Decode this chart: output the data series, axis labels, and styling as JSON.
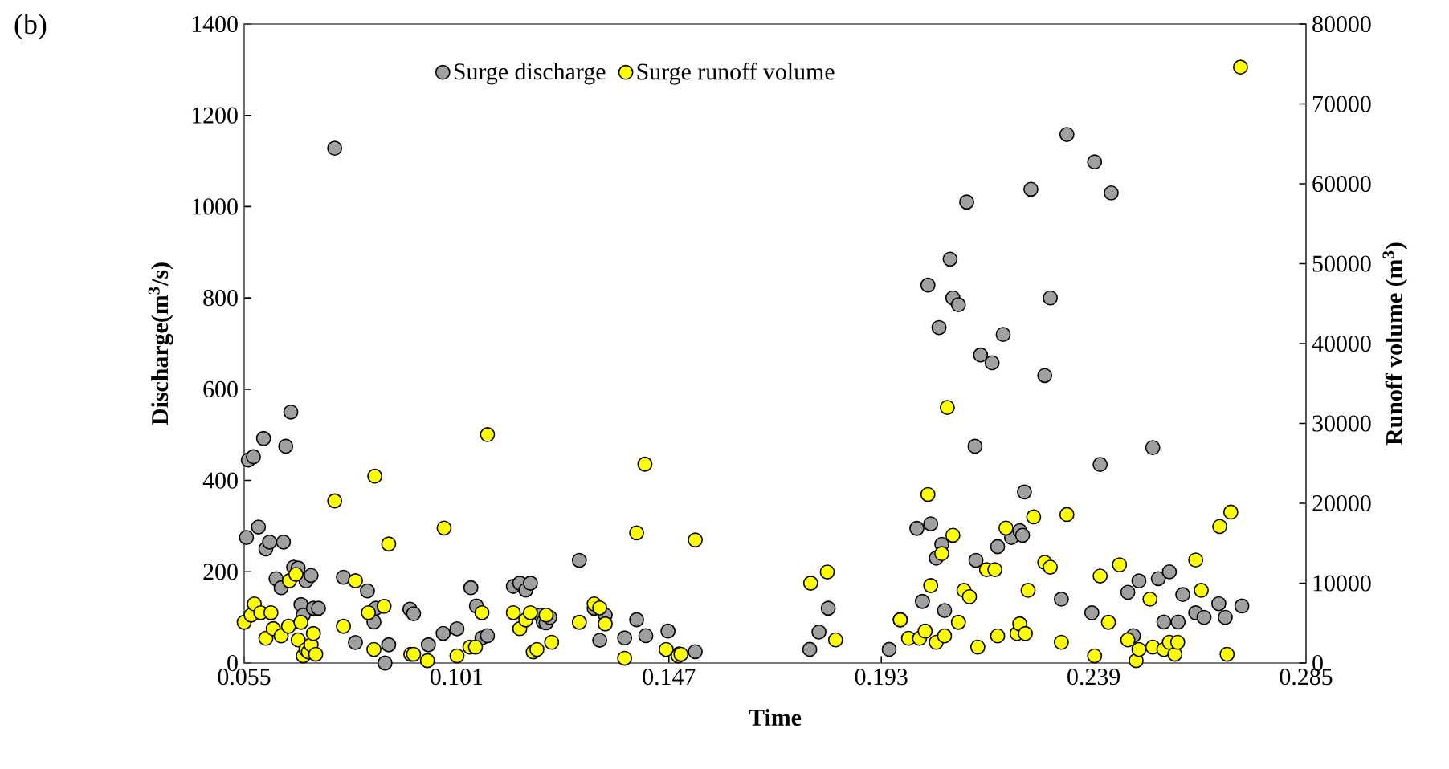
{
  "chart_data": {
    "type": "scatter",
    "xlabel": "Time",
    "ylabel": "Discharge(m$^{3}$/s)",
    "y2label": "Runoff volume (m$^{3}$)",
    "annotations": [
      "(b)"
    ],
    "xlim": [
      0.055,
      0.285
    ],
    "xticks": [
      0.055,
      0.101,
      0.147,
      0.193,
      0.239,
      0.285
    ],
    "ylim": [
      0,
      1400
    ],
    "yticks": [
      0,
      200,
      400,
      600,
      800,
      1000,
      1200,
      1400
    ],
    "y2lim": [
      0,
      80000
    ],
    "y2ticks": [
      0,
      10000,
      20000,
      30000,
      40000,
      50000,
      60000,
      70000,
      80000
    ],
    "marker": "circle",
    "legend": "top",
    "series": [
      {
        "name": "Surge discharge",
        "color": "#a0a0a0",
        "x": [
          0.0555,
          0.0559,
          0.057,
          0.0581,
          0.0592,
          0.0597,
          0.0605,
          0.0619,
          0.063,
          0.0635,
          0.064,
          0.0651,
          0.0657,
          0.0667,
          0.0673,
          0.0678,
          0.0684,
          0.0695,
          0.07,
          0.0711,
          0.0746,
          0.0765,
          0.0791,
          0.0817,
          0.0831,
          0.0835,
          0.0855,
          0.0863,
          0.0909,
          0.0917,
          0.0949,
          0.0981,
          0.1011,
          0.1041,
          0.1053,
          0.1065,
          0.1077,
          0.1133,
          0.1147,
          0.116,
          0.117,
          0.1192,
          0.1198,
          0.1204,
          0.1212,
          0.1276,
          0.1308,
          0.132,
          0.1332,
          0.1374,
          0.14,
          0.142,
          0.1468,
          0.1492,
          0.1527,
          0.1775,
          0.1795,
          0.1815,
          0.1947,
          0.1971,
          0.2007,
          0.2019,
          0.2031,
          0.2037,
          0.2049,
          0.2055,
          0.2061,
          0.2067,
          0.2079,
          0.2085,
          0.2097,
          0.2115,
          0.2133,
          0.2135,
          0.2145,
          0.217,
          0.2182,
          0.2194,
          0.2212,
          0.223,
          0.2236,
          0.224,
          0.2254,
          0.2284,
          0.2296,
          0.232,
          0.2332,
          0.2386,
          0.2392,
          0.2404,
          0.2428,
          0.2464,
          0.2476,
          0.2488,
          0.2518,
          0.253,
          0.2542,
          0.2554,
          0.2573,
          0.2583,
          0.2611,
          0.2629,
          0.2661,
          0.2675,
          0.2711
        ],
        "values": [
          275,
          445,
          452,
          298,
          492,
          250,
          265,
          185,
          165,
          265,
          475,
          550,
          210,
          208,
          128,
          105,
          180,
          192,
          120,
          120,
          1128,
          188,
          45,
          158,
          90,
          120,
          0,
          40,
          118,
          108,
          40,
          65,
          75,
          165,
          125,
          55,
          60,
          168,
          175,
          160,
          175,
          105,
          90,
          88,
          100,
          225,
          120,
          50,
          105,
          55,
          95,
          60,
          70,
          20,
          25,
          30,
          68,
          120,
          30,
          95,
          295,
          135,
          828,
          305,
          230,
          735,
          260,
          115,
          885,
          800,
          785,
          1010,
          475,
          225,
          675,
          658,
          255,
          720,
          275,
          290,
          280,
          375,
          1038,
          630,
          800,
          140,
          1158,
          110,
          1098,
          435,
          1030,
          155,
          60,
          180,
          472,
          185,
          90,
          200,
          90,
          150,
          110,
          100,
          130,
          100,
          125
        ]
      },
      {
        "name": "Surge runoff volume",
        "color": "#ffff00",
        "axis": "y2",
        "x": [
          0.055,
          0.0565,
          0.0572,
          0.0586,
          0.0597,
          0.0608,
          0.0613,
          0.063,
          0.0646,
          0.0648,
          0.0662,
          0.0667,
          0.0673,
          0.0678,
          0.0684,
          0.0689,
          0.0695,
          0.07,
          0.0705,
          0.0746,
          0.0765,
          0.0791,
          0.0819,
          0.0831,
          0.0833,
          0.0853,
          0.0863,
          0.0911,
          0.0917,
          0.0947,
          0.0983,
          0.1011,
          0.1039,
          0.1051,
          0.1065,
          0.1077,
          0.1133,
          0.1147,
          0.116,
          0.117,
          0.1176,
          0.1184,
          0.1204,
          0.1216,
          0.1276,
          0.1308,
          0.132,
          0.1332,
          0.1374,
          0.14,
          0.1418,
          0.1464,
          0.149,
          0.1496,
          0.1527,
          0.1777,
          0.1813,
          0.1831,
          0.1971,
          0.1989,
          0.2013,
          0.2025,
          0.2031,
          0.2037,
          0.2049,
          0.2061,
          0.2067,
          0.2073,
          0.2085,
          0.2097,
          0.2109,
          0.2121,
          0.2139,
          0.2158,
          0.2176,
          0.2182,
          0.22,
          0.2224,
          0.223,
          0.2242,
          0.2248,
          0.226,
          0.2284,
          0.2296,
          0.232,
          0.2332,
          0.2392,
          0.2404,
          0.2422,
          0.2446,
          0.2464,
          0.2482,
          0.2488,
          0.2512,
          0.2518,
          0.2542,
          0.2554,
          0.2566,
          0.2572,
          0.2611,
          0.2623,
          0.2663,
          0.2679,
          0.2687,
          0.2708
        ],
        "values": [
          5100,
          6000,
          7400,
          6300,
          3100,
          6300,
          4300,
          3400,
          4600,
          10300,
          11100,
          2900,
          5100,
          900,
          1700,
          1400,
          2300,
          3700,
          1100,
          20300,
          4600,
          10300,
          6300,
          1700,
          23400,
          7100,
          14900,
          1100,
          1100,
          300,
          16900,
          900,
          2000,
          2000,
          6300,
          28600,
          6300,
          4300,
          5400,
          6300,
          1400,
          1700,
          6000,
          2600,
          5100,
          7400,
          6900,
          4900,
          600,
          16300,
          24900,
          1700,
          900,
          1100,
          15400,
          10000,
          11400,
          2900,
          5400,
          3100,
          3100,
          4000,
          21100,
          9700,
          2600,
          13700,
          3400,
          32000,
          16000,
          5100,
          9100,
          8300,
          2000,
          11700,
          11700,
          3400,
          16900,
          3700,
          4900,
          3700,
          9100,
          18300,
          12600,
          12000,
          2600,
          18600,
          900,
          10900,
          5100,
          12300,
          2900,
          300,
          1700,
          8000,
          2000,
          1700,
          2600,
          1100,
          2600,
          12900,
          9100,
          17100,
          1100,
          18900,
          74600
        ]
      }
    ]
  }
}
